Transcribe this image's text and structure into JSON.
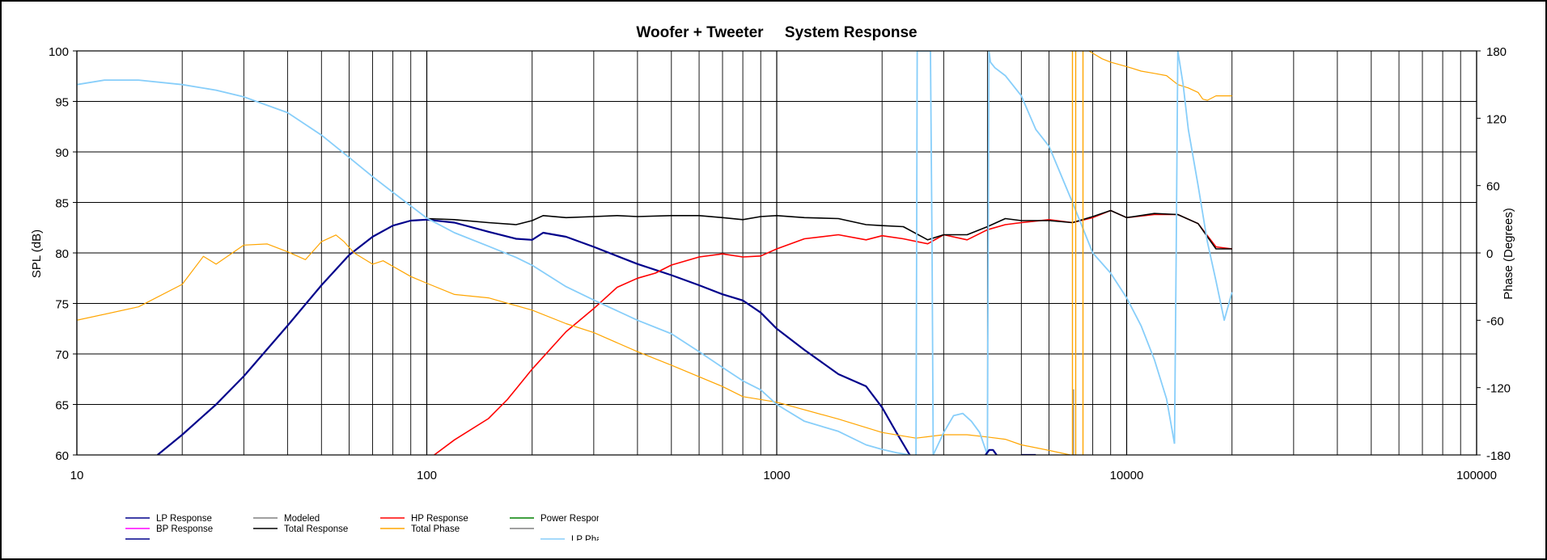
{
  "chart_data": {
    "type": "line",
    "title": "Woofer + Tweeter     System Response",
    "xlabel": "",
    "ylabel": "SPL (dB)",
    "y2label": "Phase (Degrees)",
    "xscale": "log",
    "xlim": [
      10,
      100000
    ],
    "ylim": [
      60,
      100
    ],
    "y2lim": [
      -180,
      180
    ],
    "grid": true,
    "legend_position": "bottom-left",
    "x_tick_labels": [
      "10",
      "100",
      "1000",
      "10000",
      "100000"
    ],
    "x_tick_values": [
      10,
      100,
      1000,
      10000,
      100000
    ],
    "y_tick_values": [
      60,
      65,
      70,
      75,
      80,
      85,
      90,
      95,
      100
    ],
    "y2_tick_values": [
      -180,
      -120,
      -60,
      0,
      60,
      120,
      180
    ],
    "legend": [
      {
        "label": "LP Response",
        "color": "#00008b"
      },
      {
        "label": "Modeled",
        "color": "#808080"
      },
      {
        "label": "HP Response",
        "color": "#ff0000"
      },
      {
        "label": "Power Response",
        "color": "#008000"
      },
      {
        "label": "BP Response",
        "color": "#ff00ff"
      },
      {
        "label": "Total Response",
        "color": "#000000"
      },
      {
        "label": "Total Phase",
        "color": "#ffa500"
      },
      {
        "label": "",
        "color": "#808080"
      },
      {
        "label": "",
        "color": "#00008b"
      },
      {
        "label": "LP Phase",
        "color": "#87cefa"
      }
    ],
    "series": [
      {
        "name": "LP Response",
        "color": "#00008b",
        "axis": "left",
        "width": 2.2,
        "x": [
          17,
          20,
          25,
          30,
          40,
          50,
          60,
          70,
          80,
          90,
          100,
          120,
          150,
          180,
          200,
          215,
          250,
          300,
          400,
          500,
          600,
          700,
          800,
          900,
          1000,
          1200,
          1500,
          1800,
          2000,
          2200,
          2400
        ],
        "y": [
          60,
          62,
          65,
          67.8,
          72.8,
          76.8,
          79.8,
          81.6,
          82.7,
          83.2,
          83.3,
          83.0,
          82.1,
          81.4,
          81.3,
          82.0,
          81.6,
          80.6,
          78.9,
          77.8,
          76.8,
          75.9,
          75.3,
          74.1,
          72.5,
          70.4,
          68.0,
          66.8,
          64.7,
          62.2,
          60
        ]
      },
      {
        "name": "HP Response",
        "color": "#ff0000",
        "axis": "left",
        "width": 1.6,
        "x": [
          105,
          120,
          150,
          170,
          200,
          250,
          300,
          350,
          400,
          450,
          500,
          600,
          700,
          800,
          900,
          1000,
          1200,
          1500,
          1800,
          2000,
          2300,
          2700,
          3000,
          3500,
          4000,
          4500,
          5000,
          6000,
          7000,
          8000,
          9000,
          10000,
          12000,
          14000,
          16000,
          18000,
          20000
        ],
        "y": [
          60,
          61.5,
          63.6,
          65.5,
          68.5,
          72.2,
          74.5,
          76.6,
          77.5,
          78.0,
          78.8,
          79.6,
          79.9,
          79.6,
          79.7,
          80.4,
          81.4,
          81.8,
          81.3,
          81.7,
          81.4,
          80.9,
          81.8,
          81.3,
          82.3,
          82.8,
          83.0,
          83.3,
          83.0,
          83.5,
          84.2,
          83.5,
          83.8,
          83.8,
          82.9,
          80.6,
          80.4
        ]
      },
      {
        "name": "Total Response",
        "color": "#000000",
        "axis": "left",
        "width": 1.6,
        "x": [
          100,
          120,
          150,
          180,
          200,
          215,
          250,
          300,
          350,
          400,
          500,
          600,
          700,
          800,
          900,
          1000,
          1200,
          1500,
          1800,
          2000,
          2300,
          2700,
          3000,
          3500,
          4000,
          4500,
          5000,
          6000,
          7000,
          8000,
          9000,
          10000,
          12000,
          14000,
          16000,
          18000,
          20000
        ],
        "y": [
          83.4,
          83.3,
          83.0,
          82.8,
          83.2,
          83.7,
          83.5,
          83.6,
          83.7,
          83.6,
          83.7,
          83.7,
          83.5,
          83.3,
          83.6,
          83.7,
          83.5,
          83.4,
          82.8,
          82.7,
          82.6,
          81.3,
          81.8,
          81.8,
          82.6,
          83.4,
          83.2,
          83.2,
          83.0,
          83.6,
          84.2,
          83.5,
          83.9,
          83.8,
          82.9,
          80.4,
          80.4
        ]
      },
      {
        "name": "Total Phase",
        "color": "#ffa500",
        "axis": "right",
        "width": 1.2,
        "x": [
          10,
          15,
          20,
          23,
          25,
          30,
          35,
          40,
          45,
          50,
          55,
          58,
          62,
          70,
          75,
          90,
          100,
          120,
          150,
          200,
          250,
          300,
          400,
          500,
          700,
          800,
          1000,
          1500,
          2000,
          2500,
          3000,
          3500,
          4000,
          4500,
          5000,
          6000,
          6900
        ],
        "y": [
          -60,
          -48,
          -28,
          -3,
          -10,
          7,
          8,
          1,
          -6,
          10,
          16,
          10,
          0,
          -10,
          -7,
          -21,
          -27,
          -37,
          -40,
          -51,
          -63,
          -71,
          -88,
          -100,
          -119,
          -128,
          -133,
          -148,
          -160,
          -165,
          -162,
          -162,
          -164,
          -166,
          -171,
          -176,
          -180
        ]
      },
      {
        "name": "Total Phase B",
        "color": "#ffa500",
        "axis": "right",
        "width": 1.2,
        "x": [
          7800,
          8500,
          9000,
          10000,
          11000,
          12000,
          13000,
          14000,
          15000,
          16000,
          16500,
          17000,
          18000,
          19000,
          20000
        ],
        "y": [
          180,
          173,
          170,
          166,
          162,
          160,
          158,
          150,
          147,
          143,
          137,
          136,
          140,
          140,
          140
        ]
      },
      {
        "name": "LP Phase",
        "color": "#87cefa",
        "axis": "right",
        "width": 1.8,
        "x": [
          10,
          12,
          15,
          20,
          25,
          30,
          40,
          50,
          60,
          70,
          80,
          100,
          120,
          150,
          180,
          200,
          250,
          300,
          400,
          500,
          600,
          700,
          800,
          900,
          1000,
          1200,
          1500,
          1800,
          2000,
          2200,
          2400
        ],
        "y": [
          150,
          154,
          154,
          150,
          145,
          139,
          125,
          105,
          85,
          68,
          54,
          31,
          18,
          6,
          -4,
          -11,
          -30,
          -42,
          -60,
          -72,
          -88,
          -102,
          -114,
          -122,
          -135,
          -150,
          -159,
          -171,
          -175,
          -178,
          -180
        ]
      },
      {
        "name": "LP Phase B",
        "color": "#87cefa",
        "axis": "right",
        "width": 1.8,
        "x": [
          2500,
          2510,
          2520,
          2550,
          2650,
          2750,
          2780,
          2800
        ],
        "y": [
          -180,
          0,
          180,
          180,
          180,
          180,
          0,
          -180
        ]
      },
      {
        "name": "LP Phase C",
        "color": "#87cefa",
        "axis": "right",
        "width": 1.8,
        "x": [
          2800,
          3000,
          3200,
          3400,
          3600,
          3800,
          4000
        ],
        "y": [
          -180,
          -160,
          -145,
          -143,
          -150,
          -160,
          -180
        ]
      },
      {
        "name": "LP Phase D",
        "color": "#87cefa",
        "axis": "right",
        "width": 1.8,
        "x": [
          4000,
          4020,
          4040,
          4080,
          4200,
          4500,
          5000,
          5500,
          6000,
          7000,
          8000,
          9000,
          10000,
          11000,
          12000,
          13000,
          13700
        ],
        "y": [
          -180,
          0,
          180,
          170,
          165,
          158,
          140,
          110,
          95,
          45,
          0,
          -18,
          -40,
          -65,
          -95,
          -130,
          -170
        ]
      },
      {
        "name": "LP Phase E",
        "color": "#87cefa",
        "axis": "right",
        "width": 1.8,
        "x": [
          13700,
          13850,
          14000,
          14500,
          15000,
          16000,
          17000,
          18000,
          19000,
          20000
        ],
        "y": [
          -170,
          0,
          180,
          150,
          110,
          60,
          10,
          -25,
          -60,
          -35
        ]
      },
      {
        "name": "LP Response B",
        "color": "#00008b",
        "axis": "left",
        "width": 2.2,
        "x": [
          3950,
          4050,
          4150,
          4250
        ],
        "y": [
          60,
          60.5,
          60.5,
          60
        ]
      },
      {
        "name": "LP Response C",
        "color": "#00008b",
        "axis": "left",
        "width": 2.2,
        "x": [
          5000,
          5500
        ],
        "y": [
          60,
          60
        ]
      },
      {
        "name": "Modeled",
        "color": "#808080",
        "axis": "left",
        "width": 1.2,
        "x": [
          7050,
          7050
        ],
        "y": [
          60,
          66.5
        ]
      },
      {
        "name": "Total Phase C",
        "color": "#ffa500",
        "axis": "right",
        "width": 1.4,
        "x": [
          7000,
          7000
        ],
        "y": [
          -180,
          180
        ]
      },
      {
        "name": "Total Phase D",
        "color": "#ffa500",
        "axis": "right",
        "width": 1.4,
        "x": [
          7150,
          7150
        ],
        "y": [
          -180,
          180
        ]
      },
      {
        "name": "Total Phase E",
        "color": "#ffa500",
        "axis": "right",
        "width": 1.4,
        "x": [
          7500,
          7500
        ],
        "y": [
          -180,
          180
        ]
      }
    ]
  }
}
